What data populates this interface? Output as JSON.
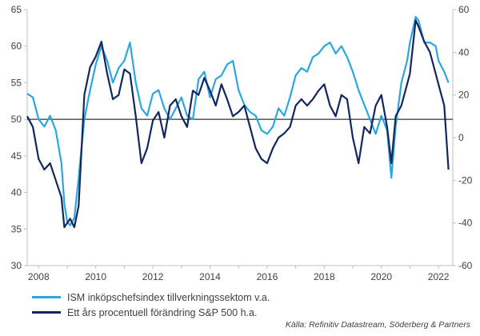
{
  "chart_data": {
    "type": "line",
    "title": "",
    "xlabel": "",
    "x_ticks": [
      "2008",
      "2010",
      "2012",
      "2014",
      "2016",
      "2018",
      "2020",
      "2022"
    ],
    "xlim": [
      2007.6,
      2022.5
    ],
    "left_axis": {
      "ylim": [
        30,
        65
      ],
      "ticks": [
        30,
        35,
        40,
        45,
        50,
        55,
        60,
        65
      ]
    },
    "right_axis": {
      "ylim": [
        -60,
        60
      ],
      "ticks": [
        -60,
        -40,
        -20,
        0,
        20,
        40,
        60
      ]
    },
    "reference_line": {
      "axis": "left",
      "value": 50
    },
    "grid": false,
    "legend_position": "bottom-left",
    "series": [
      {
        "name": "ISM inköpschefsindex tillverkningssektom v.a.",
        "axis": "left",
        "color": "#29a8e0",
        "x": [
          2007.6,
          2007.8,
          2008.0,
          2008.2,
          2008.4,
          2008.6,
          2008.8,
          2008.9,
          2009.0,
          2009.1,
          2009.25,
          2009.4,
          2009.6,
          2009.8,
          2010.0,
          2010.2,
          2010.4,
          2010.6,
          2010.8,
          2011.0,
          2011.2,
          2011.4,
          2011.6,
          2011.8,
          2012.0,
          2012.2,
          2012.4,
          2012.6,
          2012.8,
          2013.0,
          2013.2,
          2013.4,
          2013.6,
          2013.8,
          2014.0,
          2014.2,
          2014.4,
          2014.6,
          2014.8,
          2015.0,
          2015.2,
          2015.4,
          2015.6,
          2015.8,
          2016.0,
          2016.2,
          2016.4,
          2016.6,
          2016.8,
          2017.0,
          2017.2,
          2017.4,
          2017.6,
          2017.8,
          2018.0,
          2018.2,
          2018.4,
          2018.6,
          2018.8,
          2019.0,
          2019.2,
          2019.4,
          2019.6,
          2019.8,
          2020.0,
          2020.2,
          2020.35,
          2020.5,
          2020.7,
          2020.9,
          2021.0,
          2021.2,
          2021.3,
          2021.5,
          2021.7,
          2021.9,
          2022.0,
          2022.2,
          2022.35
        ],
        "values": [
          53.5,
          53.0,
          50.0,
          49.0,
          50.5,
          48.5,
          44.0,
          38.5,
          36.0,
          35.5,
          36.5,
          42.0,
          50.0,
          54.0,
          57.5,
          60.0,
          58.0,
          55.0,
          57.0,
          58.0,
          60.5,
          55.0,
          51.5,
          50.5,
          53.5,
          54.0,
          51.5,
          50.0,
          51.5,
          53.0,
          50.5,
          50.0,
          55.5,
          56.5,
          53.0,
          55.5,
          56.0,
          57.5,
          58.0,
          54.0,
          52.0,
          51.0,
          50.5,
          48.5,
          48.0,
          49.0,
          51.5,
          50.5,
          53.0,
          56.0,
          57.0,
          56.5,
          58.5,
          59.0,
          60.0,
          60.5,
          59.0,
          60.0,
          58.5,
          56.5,
          54.0,
          52.0,
          50.0,
          48.0,
          50.5,
          48.5,
          42.0,
          49.0,
          55.0,
          58.0,
          60.5,
          64.0,
          63.5,
          60.5,
          60.5,
          60.0,
          58.0,
          56.5,
          55.0
        ]
      },
      {
        "name": "Ett års procentuell förändring S&P 500 h.a.",
        "axis": "right",
        "color": "#12275e",
        "x": [
          2007.6,
          2007.8,
          2008.0,
          2008.2,
          2008.4,
          2008.6,
          2008.8,
          2008.9,
          2009.0,
          2009.1,
          2009.25,
          2009.4,
          2009.6,
          2009.8,
          2010.0,
          2010.2,
          2010.4,
          2010.6,
          2010.8,
          2011.0,
          2011.2,
          2011.4,
          2011.6,
          2011.8,
          2012.0,
          2012.2,
          2012.4,
          2012.6,
          2012.8,
          2013.0,
          2013.2,
          2013.4,
          2013.6,
          2013.8,
          2014.0,
          2014.2,
          2014.4,
          2014.6,
          2014.8,
          2015.0,
          2015.2,
          2015.4,
          2015.6,
          2015.8,
          2016.0,
          2016.2,
          2016.4,
          2016.6,
          2016.8,
          2017.0,
          2017.2,
          2017.4,
          2017.6,
          2017.8,
          2018.0,
          2018.2,
          2018.4,
          2018.6,
          2018.8,
          2019.0,
          2019.2,
          2019.4,
          2019.6,
          2019.8,
          2020.0,
          2020.2,
          2020.35,
          2020.5,
          2020.7,
          2020.9,
          2021.0,
          2021.2,
          2021.3,
          2021.5,
          2021.7,
          2021.9,
          2022.0,
          2022.2,
          2022.35
        ],
        "values": [
          10,
          5,
          -10,
          -15,
          -12,
          -20,
          -28,
          -42,
          -40,
          -38,
          -42,
          -32,
          20,
          33,
          38,
          45,
          30,
          18,
          20,
          32,
          30,
          10,
          -12,
          -5,
          8,
          12,
          0,
          15,
          18,
          10,
          5,
          22,
          20,
          28,
          22,
          15,
          25,
          18,
          10,
          12,
          15,
          5,
          -5,
          -10,
          -12,
          -5,
          0,
          2,
          5,
          15,
          18,
          15,
          18,
          22,
          25,
          15,
          10,
          20,
          18,
          0,
          -12,
          5,
          2,
          15,
          20,
          5,
          -12,
          10,
          15,
          25,
          30,
          55,
          52,
          45,
          40,
          30,
          25,
          15,
          -15
        ]
      }
    ]
  },
  "legend": {
    "items": [
      {
        "label": "ISM inköpschefsindex tillverkningssektom v.a.",
        "color": "#29a8e0"
      },
      {
        "label": "Ett års procentuell förändring S&P 500 h.a.",
        "color": "#12275e"
      }
    ]
  },
  "source": "Källa: Refinitiv Datastream, Söderberg & Partners"
}
